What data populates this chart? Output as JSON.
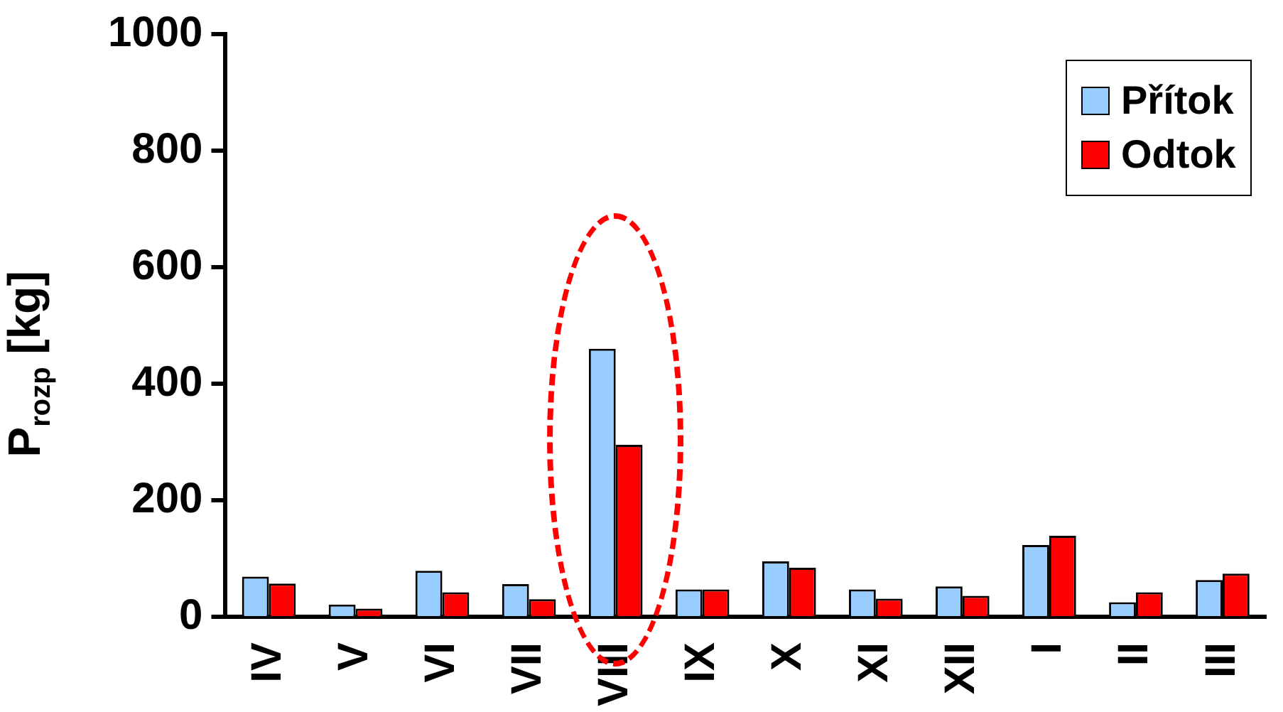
{
  "chart_data": {
    "type": "bar",
    "ylabel": "P$_{rozp}$ [kg]",
    "categories": [
      "IV",
      "V",
      "VI",
      "VII",
      "VIII",
      "IX",
      "X",
      "XI",
      "XII",
      "I",
      "II",
      "III"
    ],
    "series": [
      {
        "name": "Přítok",
        "color": "#99ccff",
        "values": [
          69,
          21,
          79,
          56,
          460,
          47,
          95,
          47,
          52,
          123,
          25,
          63
        ]
      },
      {
        "name": "Odtok",
        "color": "#ff0000",
        "values": [
          57,
          14,
          42,
          30,
          295,
          47,
          84,
          31,
          36,
          139,
          42,
          74
        ]
      }
    ],
    "ylim": [
      0,
      1000
    ],
    "yticks": [
      0,
      200,
      400,
      600,
      800,
      1000
    ],
    "grid": false,
    "legend": "top right"
  }
}
